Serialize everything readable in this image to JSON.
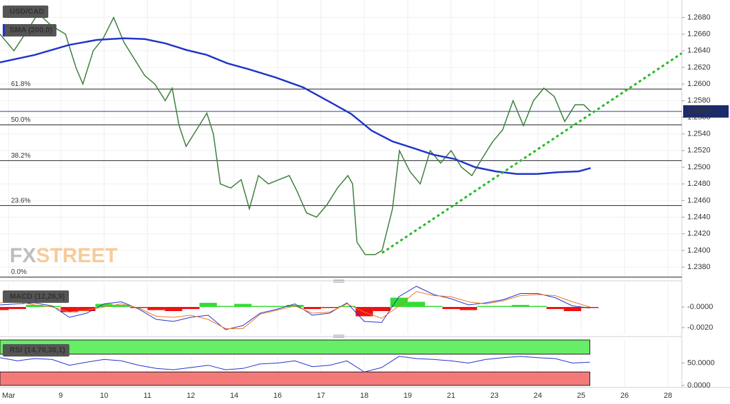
{
  "chart_data": [
    {
      "type": "line",
      "series": [
        {
          "name": "USD/CAD",
          "color": "#3d7f3d",
          "x": [
            -0.4,
            -0.08,
            0.24,
            0.48,
            0.79,
            1.11,
            1.35,
            1.51,
            1.75,
            1.98,
            2.22,
            2.46,
            2.7,
            2.94,
            3.17,
            3.41,
            3.57,
            3.73,
            3.89,
            4.13,
            4.37,
            4.52,
            4.68,
            4.92,
            5.16,
            5.35,
            5.56,
            5.79,
            6.03,
            6.27,
            6.46,
            6.67,
            6.9,
            7.14,
            7.38,
            7.62,
            7.73,
            7.83,
            8.02,
            8.25,
            8.41,
            8.65,
            8.81,
            9.05,
            9.29,
            9.52,
            9.76,
            10.0,
            10.24,
            10.48,
            10.71,
            10.95,
            11.19,
            11.43,
            11.67,
            11.9,
            12.14,
            12.38,
            12.62,
            12.86,
            13.06,
            13.22
          ],
          "values": [
            1.266,
            1.264,
            1.2665,
            1.2685,
            1.267,
            1.266,
            1.262,
            1.26,
            1.264,
            1.2655,
            1.268,
            1.265,
            1.263,
            1.261,
            1.26,
            1.258,
            1.2595,
            1.255,
            1.2525,
            1.2545,
            1.2565,
            1.254,
            1.248,
            1.2475,
            1.2485,
            1.245,
            1.249,
            1.248,
            1.2485,
            1.249,
            1.247,
            1.2445,
            1.244,
            1.2455,
            1.2475,
            1.249,
            1.248,
            1.241,
            1.2395,
            1.2395,
            1.24,
            1.245,
            1.252,
            1.2495,
            1.248,
            1.252,
            1.2505,
            1.252,
            1.25,
            1.249,
            1.251,
            1.253,
            1.2545,
            1.258,
            1.255,
            1.258,
            1.2595,
            1.2585,
            1.2555,
            1.2575,
            1.2575,
            1.2567
          ]
        },
        {
          "name": "SMA (200,0)",
          "color": "#1f35c8",
          "x": [
            -0.4,
            0.4,
            1.19,
            1.83,
            2.46,
            2.94,
            3.41,
            3.89,
            4.37,
            4.84,
            5.32,
            5.95,
            6.59,
            7.22,
            7.7,
            8.17,
            8.65,
            9.13,
            9.6,
            10.08,
            10.56,
            11.03,
            11.51,
            11.98,
            12.46,
            12.94,
            13.22
          ],
          "values": [
            1.2626,
            1.2635,
            1.2647,
            1.2653,
            1.2655,
            1.2654,
            1.2649,
            1.2641,
            1.2635,
            1.2625,
            1.2618,
            1.2608,
            1.2596,
            1.2578,
            1.2564,
            1.2544,
            1.2531,
            1.2523,
            1.2515,
            1.251,
            1.25,
            1.2495,
            1.2492,
            1.2492,
            1.2494,
            1.2495,
            1.2499
          ]
        }
      ],
      "fib_levels": [
        {
          "label": "61.8%",
          "value": 1.2594
        },
        {
          "label": "50.0%",
          "value": 1.2551
        },
        {
          "label": "38.2%",
          "value": 1.2508
        },
        {
          "label": "23.6%",
          "value": 1.2454
        },
        {
          "label": "0.0%",
          "value": 1.2368
        }
      ],
      "trendline": {
        "color": "#22bb22",
        "x": [
          8.41,
          15.32
        ],
        "values": [
          1.2397,
          1.2637
        ]
      },
      "last_price": 1.25671,
      "watermark": [
        "FX",
        "STREET"
      ],
      "xlim": [
        -0.4,
        15.32
      ],
      "ylim": [
        1.2366,
        1.2701
      ],
      "xticks": [
        {
          "value": -0.2,
          "label": "Mar"
        },
        {
          "value": 1,
          "label": "9"
        },
        {
          "value": 2,
          "label": "10"
        },
        {
          "value": 3,
          "label": "11"
        },
        {
          "value": 4,
          "label": "12"
        },
        {
          "value": 5,
          "label": "14"
        },
        {
          "value": 6,
          "label": "16"
        },
        {
          "value": 7,
          "label": "17"
        },
        {
          "value": 8,
          "label": "18"
        },
        {
          "value": 9,
          "label": "19"
        },
        {
          "value": 10,
          "label": "21"
        },
        {
          "value": 11,
          "label": "23"
        },
        {
          "value": 12,
          "label": "24"
        },
        {
          "value": 13,
          "label": "25"
        },
        {
          "value": 14,
          "label": "26"
        },
        {
          "value": 15,
          "label": "28"
        }
      ],
      "yticks": [
        {
          "value": 1.238,
          "label": "1.2380"
        },
        {
          "value": 1.24,
          "label": "1.2400"
        },
        {
          "value": 1.242,
          "label": "1.2420"
        },
        {
          "value": 1.244,
          "label": "1.2440"
        },
        {
          "value": 1.246,
          "label": "1.2460"
        },
        {
          "value": 1.248,
          "label": "1.2480"
        },
        {
          "value": 1.25,
          "label": "1.2500"
        },
        {
          "value": 1.252,
          "label": "1.2520"
        },
        {
          "value": 1.254,
          "label": "1.2540"
        },
        {
          "value": 1.256,
          "label": "1.2560"
        },
        {
          "value": 1.258,
          "label": "1.2580"
        },
        {
          "value": 1.26,
          "label": "1.2600"
        },
        {
          "value": 1.262,
          "label": "1.2620"
        },
        {
          "value": 1.264,
          "label": "1.2640"
        },
        {
          "value": 1.266,
          "label": "1.2660"
        },
        {
          "value": 1.268,
          "label": "1.2680"
        }
      ],
      "grid": true
    },
    {
      "type": "macd",
      "title": "MACD (12,26,9)",
      "x": [
        -0.4,
        0.0,
        0.4,
        0.8,
        1.2,
        1.6,
        2.0,
        2.4,
        2.8,
        3.2,
        3.6,
        4.0,
        4.4,
        4.8,
        5.2,
        5.6,
        6.0,
        6.4,
        6.8,
        7.2,
        7.6,
        8.0,
        8.4,
        8.8,
        9.2,
        9.6,
        10.0,
        10.4,
        10.8,
        11.2,
        11.6,
        12.0,
        12.4,
        12.8,
        13.2
      ],
      "histogram": {
        "up_color": "#33dd33",
        "down_color": "#ee1111",
        "values": [
          -0.0003,
          -0.0002,
          0.0002,
          0.0001,
          -0.0005,
          -0.0004,
          0.0003,
          0.0002,
          -0.0001,
          -0.0003,
          -0.0004,
          -0.0002,
          0.0004,
          0.0001,
          0.0003,
          0.0001,
          0.0001,
          0.0002,
          -0.0002,
          -0.0001,
          0.0001,
          -0.0009,
          -0.0004,
          0.0009,
          0.0005,
          0.0001,
          -0.0002,
          -0.0003,
          0.0001,
          0.0001,
          0.0002,
          0.0001,
          -0.0002,
          -0.0004,
          -0.0001
        ]
      },
      "macd": {
        "color": "#2233cc",
        "values": [
          0.0002,
          0.0003,
          0.0004,
          0.0001,
          -0.001,
          -0.0006,
          0.0003,
          0.0005,
          -0.0002,
          -0.0012,
          -0.0014,
          -0.001,
          -0.0008,
          -0.0022,
          -0.0018,
          -0.0006,
          -0.0002,
          0.0003,
          -0.0008,
          -0.0006,
          0.0004,
          -0.0014,
          -0.0015,
          0.001,
          0.002,
          0.0012,
          0.0008,
          0.0002,
          0.0004,
          0.0007,
          0.0013,
          0.0013,
          0.0009,
          0.0001,
          -0.0001
        ]
      },
      "signal": {
        "color": "#ee7722",
        "values": [
          0.0004,
          0.0005,
          0.0002,
          0.0,
          -0.0005,
          -0.0003,
          0.0,
          0.0003,
          -0.0001,
          -0.0009,
          -0.001,
          -0.0008,
          -0.0012,
          -0.0021,
          -0.0021,
          -0.0007,
          -0.0003,
          0.0001,
          -0.0006,
          -0.0005,
          0.0003,
          -0.0005,
          -0.0011,
          0.0001,
          0.0015,
          0.0011,
          0.001,
          0.0005,
          0.0003,
          0.0006,
          0.0011,
          0.0012,
          0.0011,
          0.0005,
          0.0
        ]
      },
      "ylim": [
        -0.0026,
        0.00227
      ],
      "yticks": [
        {
          "value": 0,
          "label": "-0.0000"
        },
        {
          "value": -0.002,
          "label": "-0.0020"
        }
      ]
    },
    {
      "type": "rsi",
      "title": "RSI (14,70,30,1)",
      "x": [
        -0.4,
        0.0,
        0.4,
        0.8,
        1.2,
        1.6,
        2.0,
        2.4,
        2.8,
        3.2,
        3.6,
        4.0,
        4.4,
        4.8,
        5.2,
        5.6,
        6.0,
        6.4,
        6.8,
        7.2,
        7.6,
        8.0,
        8.4,
        8.8,
        9.2,
        9.6,
        10.0,
        10.4,
        10.8,
        11.2,
        11.6,
        12.0,
        12.4,
        12.8,
        13.2
      ],
      "values": [
        62,
        55,
        60,
        58,
        45,
        52,
        58,
        55,
        45,
        38,
        35,
        40,
        45,
        35,
        38,
        48,
        50,
        55,
        42,
        45,
        55,
        30,
        40,
        65,
        60,
        58,
        55,
        50,
        58,
        62,
        65,
        62,
        60,
        50,
        52
      ],
      "color": "#2233cc",
      "overbought": {
        "level": 70,
        "color": "#66ee66"
      },
      "oversold": {
        "level": 30,
        "color": "#f47a7a"
      },
      "ylim": [
        -1.6,
        101.6
      ],
      "yticks": [
        {
          "value": 50,
          "label": "50.0000"
        },
        {
          "value": 0,
          "label": "0.0000"
        }
      ]
    }
  ]
}
